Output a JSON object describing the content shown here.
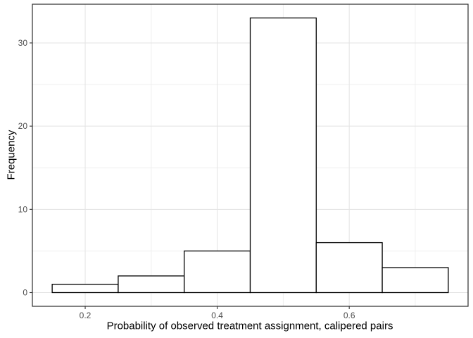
{
  "figure": {
    "background": "#FFFFFF"
  },
  "chart_data": {
    "type": "bar",
    "subtype": "histogram",
    "title": "",
    "xlabel": "Probability of observed treatment assignment, calipered pairs",
    "ylabel": "Frequency",
    "bin_edges": [
      0.15,
      0.25,
      0.35,
      0.45,
      0.55,
      0.65,
      0.75
    ],
    "counts": [
      1,
      2,
      5,
      33,
      6,
      3
    ],
    "x_ticks": [
      0.2,
      0.4,
      0.6
    ],
    "x_tick_labels": [
      "0.2",
      "0.4",
      "0.6"
    ],
    "x_minor_ticks": [
      0.3,
      0.5,
      0.7
    ],
    "y_ticks": [
      0,
      10,
      20,
      30
    ],
    "y_tick_labels": [
      "0",
      "10",
      "20",
      "30"
    ],
    "y_minor_ticks": [
      5,
      15,
      25
    ],
    "xlim": [
      0.12,
      0.78
    ],
    "ylim": [
      -1.65,
      34.65
    ],
    "grid": true,
    "legend": "none",
    "style": {
      "bar_fill": "#FFFFFF",
      "bar_stroke": "#000000",
      "panel_background": "#FFFFFF",
      "panel_border": "#2B2B2B",
      "grid_major": "#E3E3E3",
      "grid_minor": "#EFEFEF",
      "tick_color": "#333333",
      "tick_label_color": "#4D4D4D",
      "axis_title_color": "#000000"
    }
  }
}
